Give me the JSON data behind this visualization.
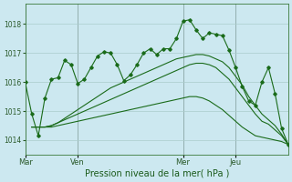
{
  "bg_color": "#cce8f0",
  "grid_color": "#aacccc",
  "line_color": "#1a6b1a",
  "marker_color": "#1a6b1a",
  "xlabel": "Pression niveau de la mer( hPa )",
  "yticks": [
    1014,
    1015,
    1016,
    1017,
    1018
  ],
  "ylim": [
    1013.5,
    1018.7
  ],
  "xtick_labels": [
    "Mar",
    "Ven",
    "Mer",
    "Jeu"
  ],
  "xtick_positions": [
    0,
    8,
    24,
    32
  ],
  "vline_positions": [
    0,
    8,
    24,
    32
  ],
  "xlim": [
    0,
    40
  ],
  "main_line_x": [
    0,
    1,
    2,
    3,
    4,
    5,
    6,
    7,
    8,
    9,
    10,
    11,
    12,
    13,
    14,
    15,
    16,
    17,
    18,
    19,
    20,
    21,
    22,
    23,
    24,
    25,
    26,
    27,
    28,
    29,
    30,
    31,
    32,
    33,
    34,
    35,
    36,
    37,
    38,
    39,
    40
  ],
  "main_line_y": [
    1016.0,
    1014.9,
    1014.15,
    1015.45,
    1016.1,
    1016.15,
    1016.75,
    1016.6,
    1015.95,
    1016.1,
    1016.5,
    1016.9,
    1017.05,
    1017.0,
    1016.6,
    1016.05,
    1016.25,
    1016.6,
    1017.0,
    1017.15,
    1016.95,
    1017.15,
    1017.15,
    1017.5,
    1018.1,
    1018.15,
    1017.8,
    1017.5,
    1017.7,
    1017.65,
    1017.6,
    1017.1,
    1016.5,
    1015.85,
    1015.35,
    1015.2,
    1016.0,
    1016.5,
    1015.6,
    1014.4,
    1013.85
  ],
  "line2_x": [
    1,
    2,
    3,
    4,
    5,
    6,
    7,
    8,
    9,
    10,
    11,
    12,
    13,
    14,
    15,
    16,
    17,
    18,
    19,
    20,
    21,
    22,
    23,
    24,
    25,
    26,
    27,
    28,
    29,
    30,
    31,
    32,
    33,
    34,
    35,
    36,
    37,
    38,
    39,
    40
  ],
  "line2_y": [
    1014.45,
    1014.45,
    1014.45,
    1014.5,
    1014.6,
    1014.7,
    1014.8,
    1014.9,
    1015.0,
    1015.1,
    1015.2,
    1015.3,
    1015.4,
    1015.5,
    1015.6,
    1015.7,
    1015.8,
    1015.9,
    1016.0,
    1016.1,
    1016.2,
    1016.3,
    1016.4,
    1016.5,
    1016.6,
    1016.65,
    1016.65,
    1016.6,
    1016.5,
    1016.3,
    1016.1,
    1015.8,
    1015.5,
    1015.2,
    1014.9,
    1014.65,
    1014.55,
    1014.35,
    1014.15,
    1013.85
  ],
  "line3_x": [
    1,
    2,
    3,
    4,
    5,
    6,
    7,
    8,
    9,
    10,
    11,
    12,
    13,
    14,
    15,
    16,
    17,
    18,
    19,
    20,
    21,
    22,
    23,
    24,
    25,
    26,
    27,
    28,
    29,
    30,
    31,
    32,
    33,
    34,
    35,
    36,
    37,
    38,
    39,
    40
  ],
  "line3_y": [
    1014.45,
    1014.45,
    1014.45,
    1014.5,
    1014.6,
    1014.75,
    1014.9,
    1015.05,
    1015.2,
    1015.35,
    1015.5,
    1015.65,
    1015.8,
    1015.9,
    1016.0,
    1016.1,
    1016.2,
    1016.3,
    1016.4,
    1016.5,
    1016.6,
    1016.7,
    1016.8,
    1016.85,
    1016.9,
    1016.95,
    1016.95,
    1016.9,
    1016.8,
    1016.7,
    1016.5,
    1016.2,
    1015.9,
    1015.5,
    1015.2,
    1014.9,
    1014.7,
    1014.5,
    1014.2,
    1013.85
  ],
  "line4_x": [
    1,
    2,
    3,
    4,
    5,
    6,
    7,
    8,
    9,
    10,
    11,
    12,
    13,
    14,
    15,
    16,
    17,
    18,
    19,
    20,
    21,
    22,
    23,
    24,
    25,
    26,
    27,
    28,
    29,
    30,
    31,
    32,
    33,
    34,
    35,
    36,
    37,
    38,
    39,
    40
  ],
  "line4_y": [
    1014.45,
    1014.45,
    1014.45,
    1014.45,
    1014.5,
    1014.55,
    1014.6,
    1014.65,
    1014.7,
    1014.75,
    1014.8,
    1014.85,
    1014.9,
    1014.95,
    1015.0,
    1015.05,
    1015.1,
    1015.15,
    1015.2,
    1015.25,
    1015.3,
    1015.35,
    1015.4,
    1015.45,
    1015.5,
    1015.5,
    1015.45,
    1015.35,
    1015.2,
    1015.05,
    1014.85,
    1014.65,
    1014.45,
    1014.3,
    1014.15,
    1014.1,
    1014.05,
    1014.0,
    1013.95,
    1013.85
  ]
}
